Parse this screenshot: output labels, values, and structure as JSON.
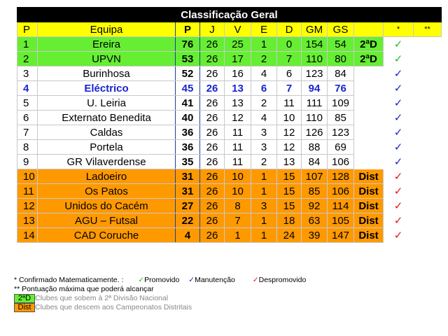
{
  "title": "Classificação Geral",
  "headers": [
    "P",
    "Equipa",
    "P",
    "J",
    "V",
    "E",
    "D",
    "GM",
    "GS",
    "",
    "*",
    "**"
  ],
  "rows": [
    {
      "pos": "1",
      "team": "Ereira",
      "pts": "76",
      "j": "26",
      "v": "25",
      "e": "1",
      "d": "0",
      "gm": "154",
      "gs": "54",
      "badge": "2ªD",
      "status": "promoted"
    },
    {
      "pos": "2",
      "team": "UPVN",
      "pts": "53",
      "j": "26",
      "v": "17",
      "e": "2",
      "d": "7",
      "gm": "110",
      "gs": "80",
      "badge": "2ªD",
      "status": "promoted"
    },
    {
      "pos": "3",
      "team": "Burinhosa",
      "pts": "52",
      "j": "26",
      "v": "16",
      "e": "4",
      "d": "6",
      "gm": "123",
      "gs": "84",
      "badge": "",
      "status": "stay"
    },
    {
      "pos": "4",
      "team": "Eléctrico",
      "pts": "45",
      "j": "26",
      "v": "13",
      "e": "6",
      "d": "7",
      "gm": "94",
      "gs": "76",
      "badge": "",
      "status": "stay",
      "highlight": true
    },
    {
      "pos": "5",
      "team": "U. Leiria",
      "pts": "41",
      "j": "26",
      "v": "13",
      "e": "2",
      "d": "11",
      "gm": "111",
      "gs": "109",
      "badge": "",
      "status": "stay"
    },
    {
      "pos": "6",
      "team": "Externato Benedita",
      "pts": "40",
      "j": "26",
      "v": "12",
      "e": "4",
      "d": "10",
      "gm": "110",
      "gs": "85",
      "badge": "",
      "status": "stay"
    },
    {
      "pos": "7",
      "team": "Caldas",
      "pts": "36",
      "j": "26",
      "v": "11",
      "e": "3",
      "d": "12",
      "gm": "126",
      "gs": "123",
      "badge": "",
      "status": "stay"
    },
    {
      "pos": "8",
      "team": "Portela",
      "pts": "36",
      "j": "26",
      "v": "11",
      "e": "3",
      "d": "12",
      "gm": "88",
      "gs": "69",
      "badge": "",
      "status": "stay"
    },
    {
      "pos": "9",
      "team": "GR Vilaverdense",
      "pts": "35",
      "j": "26",
      "v": "11",
      "e": "2",
      "d": "13",
      "gm": "84",
      "gs": "106",
      "badge": "",
      "status": "stay"
    },
    {
      "pos": "10",
      "team": "Ladoeiro",
      "pts": "31",
      "j": "26",
      "v": "10",
      "e": "1",
      "d": "15",
      "gm": "107",
      "gs": "128",
      "badge": "Dist",
      "status": "relegated"
    },
    {
      "pos": "11",
      "team": "Os Patos",
      "pts": "31",
      "j": "26",
      "v": "10",
      "e": "1",
      "d": "15",
      "gm": "85",
      "gs": "106",
      "badge": "Dist",
      "status": "relegated"
    },
    {
      "pos": "12",
      "team": "Unidos do Cacém",
      "pts": "27",
      "j": "26",
      "v": "8",
      "e": "3",
      "d": "15",
      "gm": "92",
      "gs": "114",
      "badge": "Dist",
      "status": "relegated"
    },
    {
      "pos": "13",
      "team": "AGU – Futsal",
      "pts": "22",
      "j": "26",
      "v": "7",
      "e": "1",
      "d": "18",
      "gm": "63",
      "gs": "105",
      "badge": "Dist",
      "status": "relegated"
    },
    {
      "pos": "14",
      "team": "CAD Coruche",
      "pts": "4",
      "j": "26",
      "v": "1",
      "e": "1",
      "d": "24",
      "gm": "39",
      "gs": "147",
      "badge": "Dist",
      "status": "relegated"
    }
  ],
  "check": "✓",
  "colors": {
    "promoted": "#22bb22",
    "stay": "#1a23d0",
    "relegated": "#ee1111",
    "green": "#66ee33",
    "orange": "#ff9900",
    "yellow": "#ffff00"
  },
  "legend": {
    "confirmed": "* Confirmado Matematicamente. :",
    "promoted": "Promovido",
    "stay": "Manutenção",
    "relegated": "Despromovido",
    "max_points": "** Pontuação máxima que poderá alcançar",
    "badge_2d": "2ªD",
    "badge_2d_text": "Clubes que sobem à 2ª Divisão Nacional",
    "badge_dist": "Dist",
    "badge_dist_text": "Clubes que descem aos Campeonatos Distritais"
  }
}
